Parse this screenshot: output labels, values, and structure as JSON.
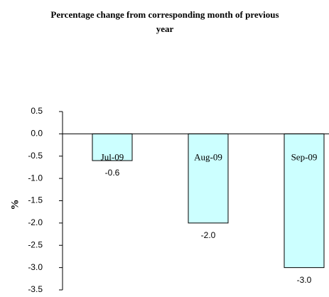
{
  "chart_data": {
    "type": "bar",
    "title": "Percentage change from corresponding month of previous year",
    "y_label": "%",
    "categories": [
      "Jul-09",
      "Aug-09",
      "Sep-09"
    ],
    "values": [
      -0.6,
      -2.0,
      -3.0
    ],
    "value_labels": [
      "-0.6",
      "-2.0",
      "-3.0"
    ],
    "color": "#ccffff",
    "ylim": [
      -3.5,
      0.5
    ],
    "yticks": [
      0.5,
      {
        "value": 0,
        "label": "0.0"
      },
      -0.5,
      {
        "value": -1,
        "label": "-1.0"
      },
      -1.5,
      {
        "value": -2,
        "label": "-2.0"
      },
      -2.5,
      {
        "value": -3,
        "label": "-3.0"
      },
      -3.5
    ]
  }
}
